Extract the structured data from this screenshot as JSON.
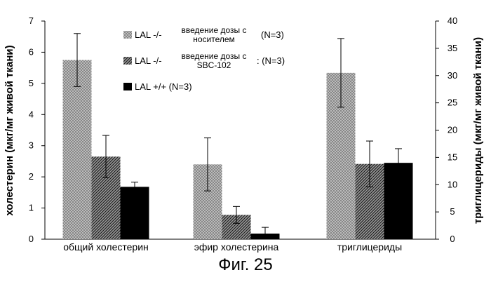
{
  "caption": "Фиг. 25",
  "chart_data": {
    "type": "bar",
    "categories": [
      "общий холестерин",
      "эфир холестерина",
      "триглицериды"
    ],
    "series": [
      {
        "name": "LAL -/-",
        "legend_desc": [
          "введение дозы с",
          "носителем"
        ],
        "legend_n": "(N=3)",
        "pattern": "light-crosshatch",
        "values": [
          5.75,
          2.4,
          30.5
        ],
        "errors": [
          0.85,
          0.85,
          6.3
        ]
      },
      {
        "name": "LAL -/-",
        "legend_desc": [
          "введение дозы с",
          "SBC-102"
        ],
        "legend_n": ": (N=3)",
        "pattern": "dark-diagonal",
        "values": [
          2.65,
          0.78,
          13.8
        ],
        "errors": [
          0.68,
          0.27,
          4.2
        ]
      },
      {
        "name": "LAL +/+ (N=3)",
        "legend_desc": [],
        "legend_n": "",
        "pattern": "solid-black",
        "values": [
          1.68,
          0.18,
          14.0
        ],
        "errors": [
          0.15,
          0.2,
          2.6
        ]
      }
    ],
    "axes": {
      "y_left": {
        "label": "холестерин (мкг/мг живой ткани)",
        "min": 0,
        "max": 7,
        "ticks": [
          "0",
          "1",
          "2",
          "3",
          "4",
          "5",
          "6",
          "7"
        ]
      },
      "y_right": {
        "label": "триглицериды (мкг/мг живой ткани)",
        "min": 0,
        "max": 40,
        "ticks": [
          "0",
          "5",
          "10",
          "15",
          "20",
          "25",
          "30",
          "35",
          "40"
        ]
      }
    },
    "value_axis_per_category": [
      "left",
      "left",
      "right"
    ],
    "grid": false,
    "legend_position": "top-center"
  }
}
